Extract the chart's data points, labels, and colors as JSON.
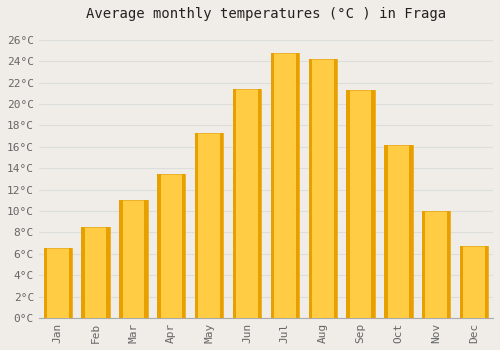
{
  "title": "Average monthly temperatures (°C ) in Fraga",
  "months": [
    "Jan",
    "Feb",
    "Mar",
    "Apr",
    "May",
    "Jun",
    "Jul",
    "Aug",
    "Sep",
    "Oct",
    "Nov",
    "Dec"
  ],
  "values": [
    6.5,
    8.5,
    11.0,
    13.5,
    17.3,
    21.4,
    24.8,
    24.2,
    21.3,
    16.2,
    10.0,
    6.7
  ],
  "bar_color_top": "#FFCC44",
  "bar_color_bottom": "#F5A623",
  "bar_edge_color": "#E8A000",
  "background_color": "#F0EDE8",
  "plot_bg_color": "#F0EDE8",
  "grid_color": "#DDDDDD",
  "ytick_labels": [
    "0°C",
    "2°C",
    "4°C",
    "6°C",
    "8°C",
    "10°C",
    "12°C",
    "14°C",
    "16°C",
    "18°C",
    "20°C",
    "22°C",
    "24°C",
    "26°C"
  ],
  "ytick_values": [
    0,
    2,
    4,
    6,
    8,
    10,
    12,
    14,
    16,
    18,
    20,
    22,
    24,
    26
  ],
  "ylim": [
    0,
    27
  ],
  "title_fontsize": 10,
  "tick_fontsize": 8,
  "title_color": "#222222",
  "tick_color": "#666666",
  "font_family": "monospace",
  "figsize": [
    5.0,
    3.5
  ],
  "dpi": 100
}
